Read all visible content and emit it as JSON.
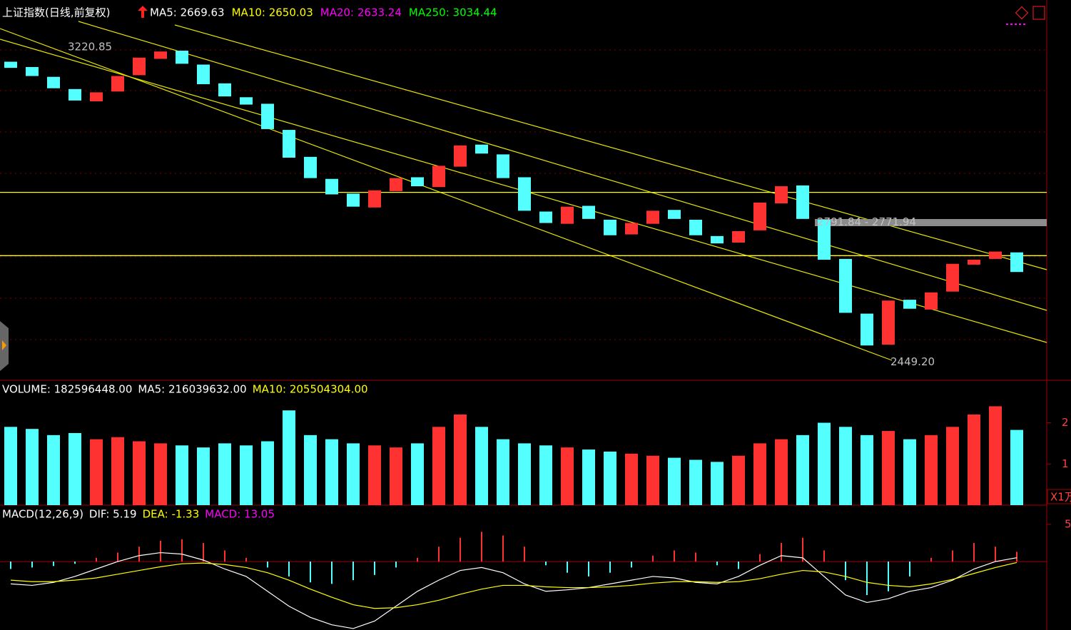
{
  "chart_data": {
    "type": "candlestick",
    "title": "上证指数(日线,前复权)",
    "ma_labels": [
      "MA5: 2669.63",
      "MA10: 2650.03",
      "MA20: 2633.24",
      "MA250: 3034.44"
    ],
    "ma_colors": [
      "#ffffff",
      "#ffff00",
      "#ff00ff",
      "#00ff00"
    ],
    "up_color": "#ff3232",
    "down_color": "#54ffff",
    "ylim": [
      2410,
      3275
    ],
    "hlines": [
      2865,
      2710
    ],
    "annotations": [
      {
        "label": "3220.85",
        "value": 3220.85
      },
      {
        "label": "2791.84 - 2771.94",
        "value": 2791.84
      },
      {
        "label": "2449.20",
        "value": 2449.2
      }
    ],
    "open": [
      3185,
      3172,
      3148,
      3118,
      3088,
      3112,
      3152,
      3192,
      3212,
      3178,
      3132,
      3098,
      3082,
      3018,
      2952,
      2898,
      2862,
      2828,
      2868,
      2902,
      2878,
      2928,
      2982,
      2958,
      2902,
      2818,
      2788,
      2832,
      2798,
      2762,
      2788,
      2822,
      2798,
      2758,
      2742,
      2772,
      2838,
      2882,
      2798,
      2702,
      2568,
      2492,
      2602,
      2578,
      2622,
      2688,
      2702,
      2718
    ],
    "close": [
      3170,
      3150,
      3120,
      3090,
      3110,
      3150,
      3195,
      3210,
      3180,
      3130,
      3100,
      3080,
      3020,
      2950,
      2900,
      2860,
      2830,
      2870,
      2900,
      2880,
      2930,
      2980,
      2960,
      2900,
      2820,
      2790,
      2830,
      2800,
      2760,
      2790,
      2820,
      2800,
      2760,
      2740,
      2770,
      2840,
      2880,
      2800,
      2700,
      2570,
      2490,
      2600,
      2580,
      2620,
      2690,
      2700,
      2720,
      2670
    ],
    "volume": {
      "labels": [
        "VOLUME: 182596448.00",
        "MA5: 216039632.00",
        "MA10: 205504304.00"
      ],
      "label_colors": [
        "#ffffff",
        "#ffffff",
        "#ffff00"
      ],
      "unit": "X1万",
      "ylim": [
        0,
        265000000
      ],
      "yticks": [
        {
          "value": 200000000,
          "label": "2"
        },
        {
          "value": 100000000,
          "label": "1"
        }
      ],
      "values": [
        190000000.0,
        185000000.0,
        170000000.0,
        175000000.0,
        160000000.0,
        165000000.0,
        155000000.0,
        150000000.0,
        145000000.0,
        140000000.0,
        150000000.0,
        145000000.0,
        155000000.0,
        230000000.0,
        170000000.0,
        160000000.0,
        150000000.0,
        145000000.0,
        140000000.0,
        150000000.0,
        190000000.0,
        220000000.0,
        190000000.0,
        160000000.0,
        150000000.0,
        145000000.0,
        140000000.0,
        135000000.0,
        130000000.0,
        125000000.0,
        120000000.0,
        115000000.0,
        110000000.0,
        105000000.0,
        120000000.0,
        150000000.0,
        160000000.0,
        170000000.0,
        200000000.0,
        190000000.0,
        170000000.0,
        180000000.0,
        160000000.0,
        170000000.0,
        190000000.0,
        220000000.0,
        240000000.0,
        182596448
      ]
    },
    "macd": {
      "labels": [
        "MACD(12,26,9)",
        "DIF: 5.19",
        "DEA: -1.33",
        "MACD: 13.05"
      ],
      "label_colors": [
        "#ffffff",
        "#ffffff",
        "#ffff00",
        "#ff00ff"
      ],
      "ylim": [
        -92,
        72
      ],
      "yticks": [
        {
          "value": 50,
          "label": "5"
        }
      ],
      "hist": [
        -10,
        -8,
        -6,
        -3,
        5,
        12,
        20,
        28,
        30,
        25,
        15,
        5,
        -8,
        -20,
        -28,
        -30,
        -25,
        -18,
        -8,
        5,
        20,
        32,
        40,
        35,
        20,
        -5,
        -15,
        -20,
        -15,
        -8,
        8,
        15,
        12,
        -5,
        -10,
        10,
        25,
        32,
        15,
        -25,
        -45,
        -40,
        -20,
        5,
        15,
        25,
        20,
        13.05
      ],
      "dif": [
        -30,
        -32,
        -28,
        -20,
        -10,
        0,
        8,
        12,
        10,
        2,
        -10,
        -20,
        -40,
        -60,
        -75,
        -85,
        -90,
        -80,
        -60,
        -40,
        -25,
        -12,
        -8,
        -15,
        -30,
        -40,
        -38,
        -35,
        -30,
        -25,
        -20,
        -22,
        -28,
        -30,
        -20,
        -5,
        8,
        5,
        -20,
        -45,
        -55,
        -50,
        -40,
        -35,
        -25,
        -10,
        0,
        5.19
      ],
      "dea": [
        -25,
        -27,
        -27,
        -25,
        -22,
        -17,
        -12,
        -7,
        -3,
        -2,
        -4,
        -8,
        -15,
        -25,
        -37,
        -48,
        -58,
        -63,
        -62,
        -58,
        -52,
        -44,
        -37,
        -32,
        -32,
        -34,
        -35,
        -35,
        -34,
        -32,
        -29,
        -27,
        -27,
        -28,
        -27,
        -23,
        -17,
        -12,
        -14,
        -20,
        -28,
        -32,
        -34,
        -30,
        -24,
        -16,
        -8,
        -1.33
      ]
    }
  }
}
